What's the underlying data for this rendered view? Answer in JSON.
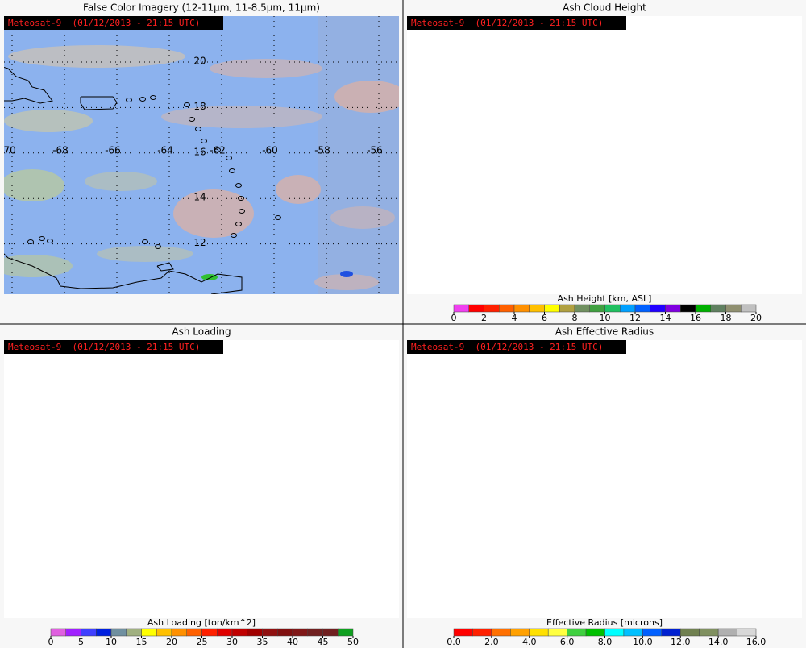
{
  "grid": {
    "lats": [
      20,
      18,
      16,
      14,
      12
    ],
    "lons": [
      -70,
      -68,
      -66,
      -64,
      -62,
      -60,
      -58,
      -56
    ]
  },
  "panels": [
    {
      "title": "False Color Imagery (12-11μm, 11-8.5μm, 11μm)",
      "stamp": "Meteosat-9  (01/12/2013 - 21:15 UTC)"
    },
    {
      "title": "Ash Cloud Height",
      "stamp": "Meteosat-9  (01/12/2013 - 21:15 UTC)",
      "colorbar": {
        "label": "Ash Height [km, ASL]",
        "range": [
          0,
          20
        ],
        "ticks": [
          0,
          2,
          4,
          6,
          8,
          10,
          12,
          14,
          16,
          18,
          20
        ],
        "colors": [
          "#f040f0",
          "#ff0000",
          "#ff2000",
          "#ff6000",
          "#ff9000",
          "#ffc000",
          "#ffff00",
          "#b0a040",
          "#709060",
          "#40a040",
          "#20c060",
          "#00a0ff",
          "#0060ff",
          "#2000ff",
          "#8000e0",
          "#000000",
          "#00b000",
          "#608060",
          "#909070",
          "#c0c0c0"
        ]
      }
    },
    {
      "title": "Ash Loading",
      "stamp": "Meteosat-9  (01/12/2013 - 21:15 UTC)",
      "colorbar": {
        "label": "Ash Loading [ton/km^2]",
        "range": [
          0,
          50
        ],
        "ticks": [
          0,
          5,
          10,
          15,
          20,
          25,
          30,
          35,
          40,
          45,
          50
        ],
        "colors": [
          "#e060e0",
          "#a020ff",
          "#4040ff",
          "#0020e0",
          "#7090a0",
          "#a0b080",
          "#ffff00",
          "#ffc000",
          "#ff9000",
          "#ff6000",
          "#ff2000",
          "#e00000",
          "#c00000",
          "#a00000",
          "#901010",
          "#801010",
          "#801818",
          "#702020",
          "#702020",
          "#10a020"
        ]
      }
    },
    {
      "title": "Ash Effective Radius",
      "stamp": "Meteosat-9  (01/12/2013 - 21:15 UTC)",
      "colorbar": {
        "label": "Effective Radius [microns]",
        "range": [
          0,
          16
        ],
        "ticks": [
          {
            "value": 0,
            "label": "0.0"
          },
          {
            "value": 2,
            "label": "2.0"
          },
          {
            "value": 4,
            "label": "4.0"
          },
          {
            "value": 6,
            "label": "6.0"
          },
          {
            "value": 8,
            "label": "8.0"
          },
          {
            "value": 10,
            "label": "10.0"
          },
          {
            "value": 12,
            "label": "12.0"
          },
          {
            "value": 14,
            "label": "14.0"
          },
          {
            "value": 16,
            "label": "16.0"
          }
        ],
        "colors": [
          "#ff0000",
          "#ff2000",
          "#ff7000",
          "#ffa000",
          "#ffe000",
          "#ffff40",
          "#40d040",
          "#00c000",
          "#00ffff",
          "#00c0ff",
          "#0060ff",
          "#0020d0",
          "#708050",
          "#809060",
          "#b0b0b0",
          "#d8d8d8"
        ]
      }
    }
  ]
}
